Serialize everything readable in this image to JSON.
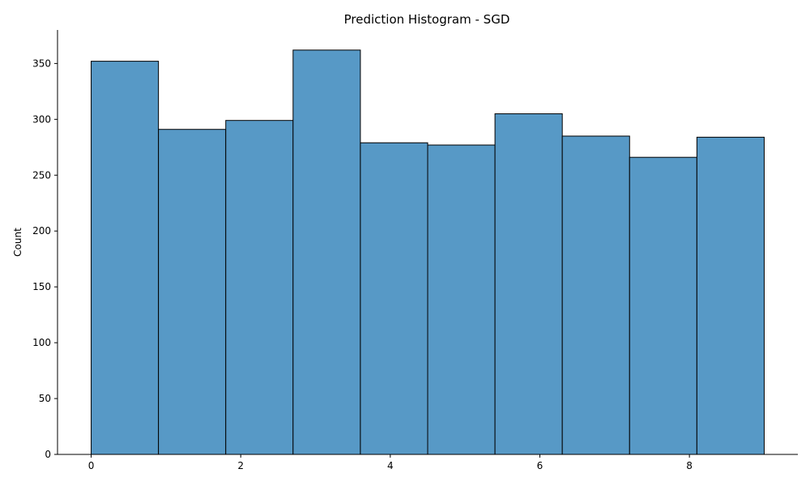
{
  "chart_data": {
    "type": "bar",
    "title": "Prediction Histogram - SGD",
    "xlabel": "",
    "ylabel": "Count",
    "bin_edges": [
      0,
      0.9,
      1.8,
      2.7,
      3.6,
      4.5,
      5.4,
      6.3,
      7.2,
      8.1,
      9.0
    ],
    "values": [
      352,
      291,
      299,
      362,
      279,
      277,
      305,
      285,
      266,
      284
    ],
    "xlim": [
      -0.45,
      9.45
    ],
    "ylim": [
      0,
      380
    ],
    "xticks": [
      0,
      2,
      4,
      6,
      8
    ],
    "yticks": [
      0,
      50,
      100,
      150,
      200,
      250,
      300,
      350
    ],
    "bar_color": "#5799c6",
    "grid": false
  }
}
